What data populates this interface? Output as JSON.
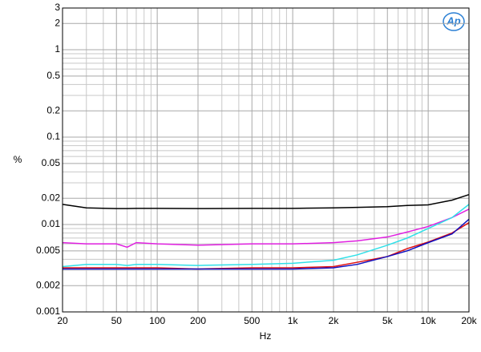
{
  "chart_data": {
    "type": "line",
    "x_label": "Hz",
    "y_label": "%",
    "logo": "Ap",
    "x": [
      20,
      30,
      50,
      60,
      70,
      100,
      200,
      500,
      1000,
      2000,
      3000,
      5000,
      7000,
      10000,
      15000,
      20000
    ],
    "series": [
      {
        "color": "#000000",
        "values": [
          0.017,
          0.0155,
          0.0152,
          0.0152,
          0.0153,
          0.0153,
          0.0152,
          0.0153,
          0.0153,
          0.0155,
          0.0157,
          0.016,
          0.0165,
          0.0168,
          0.019,
          0.022
        ]
      },
      {
        "color": "#e020e0",
        "values": [
          0.0062,
          0.006,
          0.006,
          0.0055,
          0.0062,
          0.006,
          0.0058,
          0.006,
          0.006,
          0.0062,
          0.0065,
          0.0072,
          0.0082,
          0.0095,
          0.012,
          0.015
        ]
      },
      {
        "color": "#30e0e8",
        "values": [
          0.0033,
          0.0035,
          0.0035,
          0.0034,
          0.0035,
          0.0035,
          0.0034,
          0.0035,
          0.0036,
          0.0039,
          0.0045,
          0.0058,
          0.007,
          0.009,
          0.012,
          0.017
        ]
      },
      {
        "color": "#e01010",
        "values": [
          0.0032,
          0.0032,
          0.0032,
          0.0032,
          0.0032,
          0.0032,
          0.0031,
          0.0032,
          0.0032,
          0.0033,
          0.0037,
          0.0043,
          0.0053,
          0.0063,
          0.008,
          0.0105
        ]
      },
      {
        "color": "#1010c0",
        "values": [
          0.0031,
          0.0031,
          0.0031,
          0.0031,
          0.0031,
          0.0031,
          0.0031,
          0.0031,
          0.0031,
          0.0032,
          0.0035,
          0.0043,
          0.005,
          0.0062,
          0.0078,
          0.0115
        ]
      }
    ],
    "x_log": true,
    "y_log": true,
    "grid": true,
    "xlim": [
      20,
      20000
    ],
    "ylim": [
      0.001,
      3
    ],
    "xticks": [
      20,
      50,
      100,
      200,
      500,
      {
        "value": 1000,
        "label": "1k"
      },
      {
        "value": 2000,
        "label": "2k"
      },
      {
        "value": 5000,
        "label": "5k"
      },
      {
        "value": 10000,
        "label": "10k"
      },
      {
        "value": 20000,
        "label": "20k"
      }
    ],
    "yticks": [
      0.001,
      0.002,
      0.005,
      0.01,
      0.02,
      0.05,
      0.1,
      0.2,
      0.5,
      1,
      2,
      3
    ],
    "x_minor_ticks": [
      30,
      40,
      60,
      70,
      80,
      90,
      300,
      400,
      600,
      700,
      800,
      900,
      3000,
      4000,
      6000,
      7000,
      8000,
      9000
    ],
    "y_minor_ticks": [
      0.003,
      0.004,
      0.006,
      0.007,
      0.008,
      0.009,
      0.03,
      0.04,
      0.06,
      0.07,
      0.08,
      0.09,
      0.3,
      0.4,
      0.6,
      0.7,
      0.8,
      0.9
    ]
  }
}
